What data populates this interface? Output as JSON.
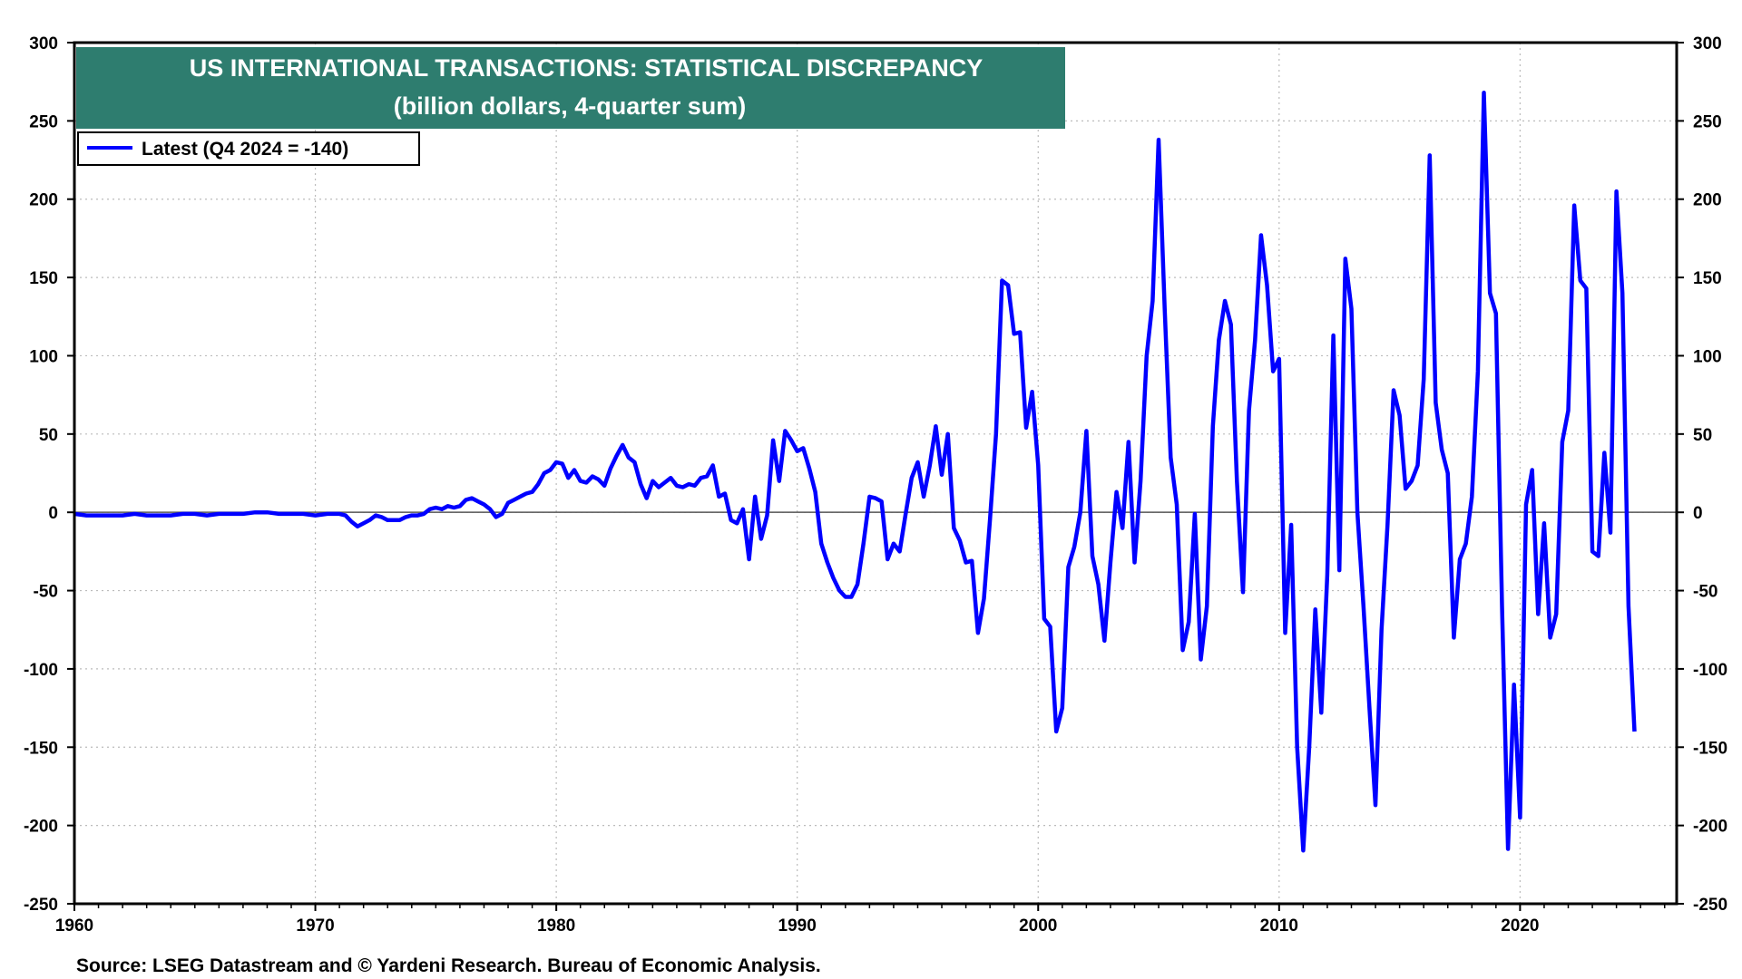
{
  "chart_data": {
    "type": "line",
    "title": "US INTERNATIONAL TRANSACTIONS: STATISTICAL DISCREPANCY",
    "subtitle": "(billion dollars, 4-quarter sum)",
    "source": "Source: LSEG Datastream and © Yardeni Research. Bureau of Economic Analysis.",
    "xlabel": "",
    "ylabel": "",
    "xlim": [
      1960,
      2026.5
    ],
    "ylim": [
      -250,
      300
    ],
    "x_ticks": [
      1960,
      1970,
      1980,
      1990,
      2000,
      2010,
      2020
    ],
    "y_ticks": [
      300,
      250,
      200,
      150,
      100,
      50,
      0,
      -50,
      -100,
      -150,
      -200,
      -250
    ],
    "y_axes": "both",
    "grid": true,
    "zero_line": true,
    "legend_position": "top-left",
    "colors": {
      "series": "#0000ff",
      "title_bg": "#2e7d6f",
      "title_text": "#ffffff",
      "grid": "#bbbbbb"
    },
    "series": [
      {
        "name": "Latest (Q4 2024 = -140)",
        "x": [
          1960.0,
          1960.5,
          1961.0,
          1961.5,
          1962.0,
          1962.5,
          1963.0,
          1963.5,
          1964.0,
          1964.5,
          1965.0,
          1965.5,
          1966.0,
          1966.5,
          1967.0,
          1967.5,
          1968.0,
          1968.5,
          1969.0,
          1969.5,
          1970.0,
          1970.5,
          1971.0,
          1971.25,
          1971.5,
          1971.75,
          1972.0,
          1972.25,
          1972.5,
          1972.75,
          1973.0,
          1973.25,
          1973.5,
          1973.75,
          1974.0,
          1974.25,
          1974.5,
          1974.75,
          1975.0,
          1975.25,
          1975.5,
          1975.75,
          1976.0,
          1976.25,
          1976.5,
          1976.75,
          1977.0,
          1977.25,
          1977.5,
          1977.75,
          1978.0,
          1978.25,
          1978.5,
          1978.75,
          1979.0,
          1979.25,
          1979.5,
          1979.75,
          1980.0,
          1980.25,
          1980.5,
          1980.75,
          1981.0,
          1981.25,
          1981.5,
          1981.75,
          1982.0,
          1982.25,
          1982.5,
          1982.75,
          1983.0,
          1983.25,
          1983.5,
          1983.75,
          1984.0,
          1984.25,
          1984.5,
          1984.75,
          1985.0,
          1985.25,
          1985.5,
          1985.75,
          1986.0,
          1986.25,
          1986.5,
          1986.75,
          1987.0,
          1987.25,
          1987.5,
          1987.75,
          1988.0,
          1988.25,
          1988.5,
          1988.75,
          1989.0,
          1989.25,
          1989.5,
          1989.75,
          1990.0,
          1990.25,
          1990.5,
          1990.75,
          1991.0,
          1991.25,
          1991.5,
          1991.75,
          1992.0,
          1992.25,
          1992.5,
          1992.75,
          1993.0,
          1993.25,
          1993.5,
          1993.75,
          1994.0,
          1994.25,
          1994.5,
          1994.75,
          1995.0,
          1995.25,
          1995.5,
          1995.75,
          1996.0,
          1996.25,
          1996.5,
          1996.75,
          1997.0,
          1997.25,
          1997.5,
          1997.75,
          1998.0,
          1998.25,
          1998.5,
          1998.75,
          1999.0,
          1999.25,
          1999.5,
          1999.75,
          2000.0,
          2000.25,
          2000.5,
          2000.75,
          2001.0,
          2001.25,
          2001.5,
          2001.75,
          2002.0,
          2002.25,
          2002.5,
          2002.75,
          2003.0,
          2003.25,
          2003.5,
          2003.75,
          2004.0,
          2004.25,
          2004.5,
          2004.75,
          2005.0,
          2005.25,
          2005.5,
          2005.75,
          2006.0,
          2006.25,
          2006.5,
          2006.75,
          2007.0,
          2007.25,
          2007.5,
          2007.75,
          2008.0,
          2008.25,
          2008.5,
          2008.75,
          2009.0,
          2009.25,
          2009.5,
          2009.75,
          2010.0,
          2010.25,
          2010.5,
          2010.75,
          2011.0,
          2011.25,
          2011.5,
          2011.75,
          2012.0,
          2012.25,
          2012.5,
          2012.75,
          2013.0,
          2013.25,
          2013.5,
          2013.75,
          2014.0,
          2014.25,
          2014.5,
          2014.75,
          2015.0,
          2015.25,
          2015.5,
          2015.75,
          2016.0,
          2016.25,
          2016.5,
          2016.75,
          2017.0,
          2017.25,
          2017.5,
          2017.75,
          2018.0,
          2018.25,
          2018.5,
          2018.75,
          2019.0,
          2019.25,
          2019.5,
          2019.75,
          2020.0,
          2020.25,
          2020.5,
          2020.75,
          2021.0,
          2021.25,
          2021.5,
          2021.75,
          2022.0,
          2022.25,
          2022.5,
          2022.75,
          2023.0,
          2023.25,
          2023.5,
          2023.75,
          2024.0,
          2024.25,
          2024.5,
          2024.75
        ],
        "y": [
          -1,
          -2,
          -2,
          -2,
          -2,
          -1,
          -2,
          -2,
          -2,
          -1,
          -1,
          -2,
          -1,
          -1,
          -1,
          0,
          0,
          -1,
          -1,
          -1,
          -2,
          -1,
          -1,
          -2,
          -6,
          -9,
          -7,
          -5,
          -2,
          -3,
          -5,
          -5,
          -5,
          -3,
          -2,
          -2,
          -1,
          2,
          3,
          2,
          4,
          3,
          4,
          8,
          9,
          7,
          5,
          2,
          -3,
          -1,
          6,
          8,
          10,
          12,
          13,
          18,
          25,
          27,
          32,
          31,
          22,
          27,
          20,
          19,
          23,
          21,
          17,
          28,
          36,
          43,
          35,
          32,
          18,
          9,
          20,
          16,
          19,
          22,
          17,
          16,
          18,
          17,
          22,
          23,
          30,
          10,
          12,
          -5,
          -7,
          2,
          -30,
          10,
          -17,
          -2,
          46,
          20,
          52,
          46,
          39,
          41,
          28,
          13,
          -20,
          -32,
          -42,
          -50,
          -54,
          -54,
          -46,
          -20,
          10,
          9,
          7,
          -30,
          -20,
          -25,
          -1,
          22,
          32,
          10,
          30,
          55,
          24,
          50,
          -10,
          -18,
          -32,
          -31,
          -77,
          -55,
          -5,
          50,
          148,
          145,
          114,
          115,
          54,
          77,
          30,
          -68,
          -73,
          -140,
          -125,
          -35,
          -22,
          0,
          52,
          -28,
          -46,
          -82,
          -32,
          13,
          -10,
          45,
          -32,
          20,
          100,
          135,
          238,
          130,
          35,
          5,
          -88,
          -70,
          -1,
          -94,
          -60,
          55,
          110,
          135,
          120,
          20,
          -51,
          65,
          110,
          177,
          145,
          90,
          98,
          -77,
          -8,
          -150,
          -216,
          -150,
          -62,
          -128,
          -40,
          113,
          -37,
          162,
          130,
          0,
          -60,
          -125,
          -187,
          -75,
          -8,
          78,
          62,
          15,
          20,
          30,
          85,
          228,
          70,
          40,
          25,
          -80,
          -30,
          -20,
          10,
          90,
          268,
          140,
          127,
          -60,
          -215,
          -110,
          -195,
          5,
          27,
          -65,
          -7,
          -80,
          -65,
          45,
          65,
          196,
          148,
          143,
          -25,
          -28,
          38,
          -13,
          205,
          140,
          -60,
          -140
        ]
      }
    ]
  }
}
